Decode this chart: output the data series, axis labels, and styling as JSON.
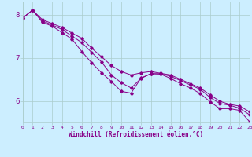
{
  "title": "",
  "xlabel": "Windchill (Refroidissement éolien,°C)",
  "ylabel": "",
  "background_color": "#cceeff",
  "grid_color": "#aacccc",
  "line_color": "#880088",
  "x_ticks": [
    0,
    1,
    2,
    3,
    4,
    5,
    6,
    7,
    8,
    9,
    10,
    11,
    12,
    13,
    14,
    15,
    16,
    17,
    18,
    19,
    20,
    21,
    22,
    23
  ],
  "xlim": [
    0,
    23
  ],
  "ylim": [
    5.5,
    8.3
  ],
  "yticks": [
    6,
    7,
    8
  ],
  "series1_x": [
    0,
    1,
    2,
    3,
    4,
    5,
    6,
    7,
    8,
    9,
    10,
    11,
    12,
    13,
    14,
    15,
    16,
    17,
    18,
    19,
    20,
    21,
    22,
    23
  ],
  "series1_y": [
    7.92,
    8.1,
    7.82,
    7.73,
    7.58,
    7.43,
    7.14,
    6.88,
    6.65,
    6.45,
    6.22,
    6.18,
    6.53,
    6.63,
    6.62,
    6.52,
    6.4,
    6.3,
    6.17,
    5.98,
    5.82,
    5.82,
    5.78,
    5.52
  ],
  "series2_x": [
    0,
    1,
    2,
    3,
    4,
    5,
    6,
    7,
    8,
    9,
    10,
    11,
    12,
    13,
    14,
    15,
    16,
    17,
    18,
    19,
    20,
    21,
    22,
    23
  ],
  "series2_y": [
    7.92,
    8.1,
    7.85,
    7.76,
    7.65,
    7.5,
    7.35,
    7.12,
    6.9,
    6.6,
    6.42,
    6.3,
    6.52,
    6.63,
    6.63,
    6.57,
    6.47,
    6.37,
    6.27,
    6.08,
    5.94,
    5.9,
    5.83,
    5.68
  ],
  "series3_x": [
    0,
    1,
    2,
    3,
    4,
    5,
    6,
    7,
    8,
    9,
    10,
    11,
    12,
    13,
    14,
    15,
    16,
    17,
    18,
    19,
    20,
    21,
    22,
    23
  ],
  "series3_y": [
    7.92,
    8.1,
    7.88,
    7.79,
    7.7,
    7.57,
    7.45,
    7.22,
    7.02,
    6.82,
    6.68,
    6.6,
    6.65,
    6.68,
    6.64,
    6.6,
    6.5,
    6.4,
    6.3,
    6.14,
    5.99,
    5.92,
    5.88,
    5.75
  ]
}
